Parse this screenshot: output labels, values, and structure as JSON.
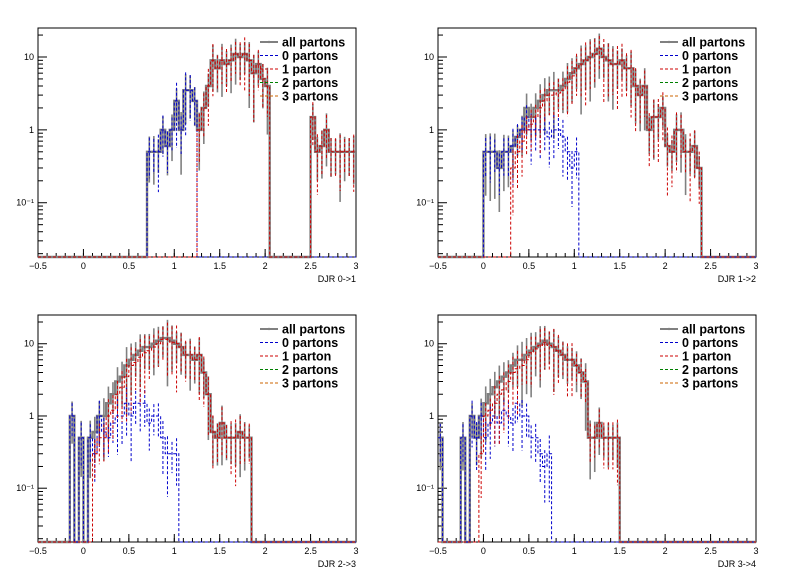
{
  "chart_data": [
    {
      "type": "step-histogram",
      "xlabel": "DJR 0->1",
      "xlim": [
        -0.5,
        3
      ],
      "ylim": [
        0.018,
        25
      ],
      "yscale": "log",
      "xticks": [
        -0.5,
        0,
        0.5,
        1,
        1.5,
        2,
        2.5,
        3
      ],
      "xtick_labels": [
        "−0.5",
        "0",
        "0.5",
        "1",
        "1.5",
        "2",
        "2.5",
        "3"
      ],
      "yticks": [
        0.1,
        1,
        10
      ],
      "ytick_labels": [
        "10⁻¹",
        "1",
        "10"
      ],
      "legend_position": "top-right",
      "legend": [
        "all partons",
        "0 partons",
        "1 parton",
        "2 partons",
        "3 partons"
      ],
      "colors": {
        "all partons": "#808080",
        "0 partons": "#0000cc",
        "1 parton": "#cc0000",
        "2 partons": "#008000",
        "3 partons": "#cc6600"
      },
      "bin_width": 0.05,
      "x0": -0.5,
      "series": [
        {
          "name": "all partons",
          "values": [
            0,
            0,
            0,
            0,
            0,
            0,
            0,
            0,
            0,
            0,
            0,
            0,
            0,
            0,
            0,
            0,
            0,
            0,
            0,
            0,
            0,
            0,
            0,
            0,
            0.5,
            0.5,
            0.5,
            1,
            0.6,
            1,
            2.5,
            1,
            3.5,
            3.5,
            2.5,
            1,
            2,
            4,
            9,
            7,
            9,
            8,
            9,
            11,
            10,
            11,
            9,
            6,
            8,
            5,
            4,
            0,
            0,
            0,
            0,
            0,
            0,
            0,
            0,
            0,
            1.5,
            0.5,
            0.6,
            1,
            0.5,
            0.5,
            0.5,
            0.5,
            0.5,
            0.5
          ]
        },
        {
          "name": "0 partons",
          "values": [
            0,
            0,
            0,
            0,
            0,
            0,
            0,
            0,
            0,
            0,
            0,
            0,
            0,
            0,
            0,
            0,
            0,
            0,
            0,
            0,
            0,
            0,
            0,
            0,
            0.5,
            0.5,
            0.5,
            1,
            0.6,
            1,
            2.5,
            1,
            3.5,
            3.5,
            2.5,
            0,
            0,
            0,
            0,
            0,
            0,
            0,
            0,
            0,
            0,
            0,
            0,
            0,
            0,
            0,
            0,
            0,
            0,
            0,
            0,
            0,
            0,
            0,
            0,
            0,
            0,
            0,
            0,
            0,
            0,
            0,
            0,
            0,
            0,
            0
          ]
        },
        {
          "name": "1 parton",
          "values": [
            0,
            0,
            0,
            0,
            0,
            0,
            0,
            0,
            0,
            0,
            0,
            0,
            0,
            0,
            0,
            0,
            0,
            0,
            0,
            0,
            0,
            0,
            0,
            0,
            0,
            0,
            0,
            0,
            0,
            0,
            0,
            0,
            0,
            0,
            0,
            1,
            2,
            4,
            9,
            7,
            9,
            8,
            9,
            11,
            10,
            11,
            9,
            6,
            8,
            5,
            4,
            0,
            0,
            0,
            0,
            0,
            0,
            0,
            0,
            0,
            1.5,
            0.5,
            0.6,
            1,
            0.5,
            0.5,
            0.5,
            0.5,
            0.5,
            0.5
          ]
        },
        {
          "name": "2 partons",
          "values": []
        },
        {
          "name": "3 partons",
          "values": []
        }
      ]
    },
    {
      "type": "step-histogram",
      "xlabel": "DJR 1->2",
      "xlim": [
        -0.5,
        3
      ],
      "ylim": [
        0.018,
        25
      ],
      "yscale": "log",
      "xticks": [
        -0.5,
        0,
        0.5,
        1,
        1.5,
        2,
        2.5,
        3
      ],
      "xtick_labels": [
        "−0.5",
        "0",
        "0.5",
        "1",
        "1.5",
        "2",
        "2.5",
        "3"
      ],
      "yticks": [
        0.1,
        1,
        10
      ],
      "ytick_labels": [
        "10⁻¹",
        "1",
        "10"
      ],
      "legend_position": "top-right",
      "legend": [
        "all partons",
        "0 partons",
        "1 parton",
        "2 partons",
        "3 partons"
      ],
      "colors": {
        "all partons": "#808080",
        "0 partons": "#0000cc",
        "1 parton": "#cc0000",
        "2 partons": "#008000",
        "3 partons": "#cc6600"
      },
      "bin_width": 0.05,
      "x0": -0.5,
      "series": [
        {
          "name": "all partons",
          "values": [
            0,
            0,
            0,
            0,
            0,
            0,
            0,
            0,
            0,
            0,
            0.5,
            0.5,
            0.5,
            0.3,
            0.5,
            0.5,
            0.6,
            0.8,
            1,
            2,
            1.5,
            2,
            2.5,
            3,
            3.5,
            3.5,
            3.5,
            4,
            5,
            6,
            7,
            8,
            9,
            10,
            11,
            13,
            10,
            9,
            8,
            8,
            9,
            7,
            7,
            4,
            3,
            4,
            1,
            1.5,
            1.5,
            2,
            0.6,
            0.5,
            1,
            1,
            0.5,
            0.5,
            0.6,
            0.3,
            0,
            0,
            0,
            0,
            0,
            0,
            0,
            0,
            0,
            0,
            0,
            0
          ]
        },
        {
          "name": "0 partons",
          "values": [
            0,
            0,
            0,
            0,
            0,
            0,
            0,
            0,
            0,
            0,
            0.5,
            0.5,
            0.5,
            0.3,
            0.5,
            0.5,
            0.6,
            0.8,
            1,
            1.5,
            1,
            1,
            1,
            1,
            0.8,
            1,
            1,
            0.8,
            0.5,
            0.3,
            0.5,
            0,
            0,
            0,
            0,
            0,
            0,
            0,
            0,
            0,
            0,
            0,
            0,
            0,
            0,
            0,
            0,
            0,
            0,
            0,
            0,
            0,
            0,
            0,
            0,
            0,
            0,
            0,
            0,
            0,
            0,
            0,
            0,
            0,
            0,
            0,
            0,
            0,
            0,
            0
          ]
        },
        {
          "name": "1 parton",
          "values": [
            0,
            0,
            0,
            0,
            0,
            0,
            0,
            0,
            0,
            0,
            0,
            0,
            0,
            0,
            0,
            0,
            0.3,
            0.5,
            0.7,
            1,
            1.2,
            1.5,
            2,
            2.5,
            3,
            3,
            3.2,
            3.5,
            4.5,
            5.5,
            7,
            8,
            9,
            10,
            11,
            13,
            10,
            9,
            8,
            8,
            9,
            7,
            7,
            4,
            3,
            4,
            1,
            1.5,
            1.5,
            2,
            0.6,
            0.5,
            1,
            1,
            0.5,
            0.5,
            0.6,
            0.3,
            0,
            0,
            0,
            0,
            0,
            0,
            0,
            0,
            0,
            0,
            0,
            0
          ]
        },
        {
          "name": "2 partons",
          "values": []
        },
        {
          "name": "3 partons",
          "values": []
        }
      ]
    },
    {
      "type": "step-histogram",
      "xlabel": "DJR 2->3",
      "xlim": [
        -0.5,
        3
      ],
      "ylim": [
        0.018,
        25
      ],
      "yscale": "log",
      "xticks": [
        -0.5,
        0,
        0.5,
        1,
        1.5,
        2,
        2.5,
        3
      ],
      "xtick_labels": [
        "−0.5",
        "0",
        "0.5",
        "1",
        "1.5",
        "2",
        "2.5",
        "3"
      ],
      "yticks": [
        0.1,
        1,
        10
      ],
      "ytick_labels": [
        "10⁻¹",
        "1",
        "10"
      ],
      "legend_position": "top-right",
      "legend": [
        "all partons",
        "0 partons",
        "1 parton",
        "2 partons",
        "3 partons"
      ],
      "colors": {
        "all partons": "#808080",
        "0 partons": "#0000cc",
        "1 parton": "#cc0000",
        "2 partons": "#008000",
        "3 partons": "#cc6600"
      },
      "bin_width": 0.05,
      "x0": -0.5,
      "series": [
        {
          "name": "all partons",
          "values": [
            0,
            0,
            0,
            0,
            0,
            0,
            0,
            1,
            0,
            0.5,
            0,
            0.5,
            0.6,
            1,
            1,
            1.5,
            2,
            3,
            3.5,
            5,
            6,
            7,
            8,
            9,
            9,
            10,
            11,
            12,
            12,
            11,
            10,
            9,
            7,
            7,
            6,
            7,
            4,
            2,
            0.6,
            0.5,
            0.8,
            0.5,
            0.5,
            0.5,
            0.6,
            0.5,
            0.5,
            0,
            0,
            0,
            0,
            0,
            0,
            0,
            0,
            0,
            0,
            0,
            0,
            0,
            0,
            0,
            0,
            0,
            0,
            0,
            0,
            0,
            0,
            0
          ]
        },
        {
          "name": "0 partons",
          "values": [
            0,
            0,
            0,
            0,
            0,
            0,
            0,
            1,
            0,
            0.5,
            0,
            0.5,
            0.3,
            1,
            0.6,
            0.5,
            0.8,
            1,
            1,
            1.5,
            1,
            1.5,
            1.5,
            1.5,
            0.8,
            1,
            1,
            0.5,
            0.3,
            0.3,
            0.3,
            0,
            0,
            0,
            0,
            0,
            0,
            0,
            0,
            0,
            0,
            0,
            0,
            0,
            0,
            0,
            0,
            0,
            0,
            0,
            0,
            0,
            0,
            0,
            0,
            0,
            0,
            0,
            0,
            0,
            0,
            0,
            0,
            0,
            0,
            0,
            0,
            0,
            0,
            0
          ]
        },
        {
          "name": "1 parton",
          "values": [
            0,
            0,
            0,
            0,
            0,
            0,
            0,
            0,
            0,
            0,
            0,
            0,
            0.3,
            0.5,
            0.5,
            1,
            1.2,
            2,
            2.5,
            3.5,
            5,
            5.5,
            6.5,
            7.5,
            8,
            9,
            10,
            11.5,
            11.5,
            10.5,
            10,
            9,
            7,
            7,
            6,
            7,
            4,
            2,
            0.6,
            0.5,
            0.8,
            0.5,
            0.5,
            0.5,
            0.6,
            0.5,
            0.5,
            0,
            0,
            0,
            0,
            0,
            0,
            0,
            0,
            0,
            0,
            0,
            0,
            0,
            0,
            0,
            0,
            0,
            0,
            0,
            0,
            0,
            0,
            0
          ]
        },
        {
          "name": "2 partons",
          "values": []
        },
        {
          "name": "3 partons",
          "values": []
        }
      ]
    },
    {
      "type": "step-histogram",
      "xlabel": "DJR 3->4",
      "xlim": [
        -0.5,
        3
      ],
      "ylim": [
        0.018,
        25
      ],
      "yscale": "log",
      "xticks": [
        -0.5,
        0,
        0.5,
        1,
        1.5,
        2,
        2.5,
        3
      ],
      "xtick_labels": [
        "−0.5",
        "0",
        "0.5",
        "1",
        "1.5",
        "2",
        "2.5",
        "3"
      ],
      "yticks": [
        0.1,
        1,
        10
      ],
      "ytick_labels": [
        "10⁻¹",
        "1",
        "10"
      ],
      "legend_position": "top-right",
      "legend": [
        "all partons",
        "0 partons",
        "1 parton",
        "2 partons",
        "3 partons"
      ],
      "colors": {
        "all partons": "#808080",
        "0 partons": "#0000cc",
        "1 parton": "#cc0000",
        "2 partons": "#008000",
        "3 partons": "#cc6600"
      },
      "bin_width": 0.05,
      "x0": -0.5,
      "series": [
        {
          "name": "all partons",
          "values": [
            0.5,
            0,
            0,
            0,
            0,
            0.5,
            0,
            1,
            0.5,
            1,
            1.5,
            2,
            2.5,
            3,
            3.5,
            4,
            5,
            6,
            6,
            7,
            8,
            9,
            10,
            11,
            10,
            9,
            8,
            7,
            6,
            6,
            5,
            4,
            3,
            0.5,
            0.5,
            0.8,
            0.5,
            0.5,
            0.5,
            0.5,
            0,
            0,
            0,
            0,
            0,
            0,
            0,
            0,
            0,
            0,
            0,
            0,
            0,
            0,
            0,
            0,
            0,
            0,
            0,
            0,
            0,
            0,
            0,
            0,
            0,
            0,
            0,
            0,
            0,
            0
          ]
        },
        {
          "name": "0 partons",
          "values": [
            0.5,
            0,
            0,
            0,
            0,
            0.5,
            0,
            1,
            0.5,
            1,
            0.5,
            0.8,
            1,
            0.8,
            1.2,
            1,
            0.8,
            1.5,
            1,
            1,
            0.5,
            0.5,
            0.3,
            0.2,
            0.3,
            0,
            0,
            0,
            0,
            0,
            0,
            0,
            0,
            0,
            0,
            0,
            0,
            0,
            0,
            0,
            0,
            0,
            0,
            0,
            0,
            0,
            0,
            0,
            0,
            0,
            0,
            0,
            0,
            0,
            0,
            0,
            0,
            0,
            0,
            0,
            0,
            0,
            0,
            0,
            0,
            0,
            0,
            0,
            0,
            0
          ]
        },
        {
          "name": "1 parton",
          "values": [
            0,
            0,
            0,
            0,
            0,
            0,
            0,
            0,
            0,
            0.3,
            1,
            1.2,
            1.5,
            2,
            2.3,
            3,
            4,
            4.5,
            5,
            6,
            7.5,
            8.5,
            9.5,
            10.5,
            9.5,
            9,
            8,
            7,
            6,
            6,
            5,
            4,
            3,
            0.5,
            0.5,
            0.8,
            0.5,
            0.5,
            0.5,
            0.5,
            0,
            0,
            0,
            0,
            0,
            0,
            0,
            0,
            0,
            0,
            0,
            0,
            0,
            0,
            0,
            0,
            0,
            0,
            0,
            0,
            0,
            0,
            0,
            0,
            0,
            0,
            0,
            0,
            0,
            0
          ]
        },
        {
          "name": "2 partons",
          "values": []
        },
        {
          "name": "3 partons",
          "values": []
        }
      ]
    }
  ]
}
